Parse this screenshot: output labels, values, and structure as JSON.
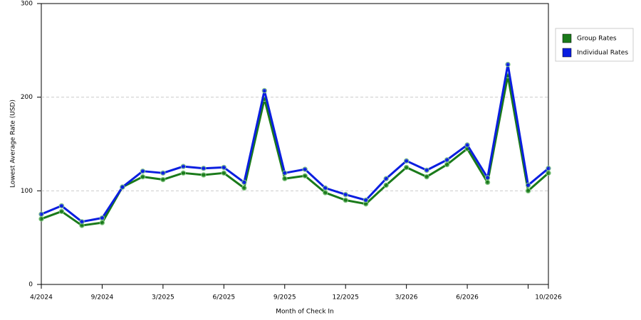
{
  "chart_data": {
    "type": "line",
    "x_label": "Month of Check In",
    "y_label": "Lowest Average Rate (USD)",
    "categories": [
      "4/2024",
      null,
      null,
      "9/2024",
      null,
      null,
      "3/2025",
      null,
      null,
      "6/2025",
      null,
      null,
      "9/2025",
      null,
      null,
      "12/2025",
      null,
      null,
      "3/2026",
      null,
      null,
      "6/2026",
      null,
      null,
      null,
      "10/2026"
    ],
    "series": [
      {
        "name": "Group Rates",
        "color": "#1a7a1a",
        "values": [
          70,
          78,
          63,
          66,
          104,
          115,
          112,
          119,
          117,
          119,
          103,
          198,
          113,
          116,
          98,
          90,
          86,
          106,
          125,
          115,
          128,
          145,
          109,
          223,
          100,
          119
        ]
      },
      {
        "name": "Individual Rates",
        "color": "#0a1ee0",
        "values": [
          75,
          84,
          67,
          71,
          104,
          121,
          119,
          126,
          124,
          125,
          109,
          207,
          119,
          123,
          103,
          96,
          90,
          113,
          132,
          122,
          133,
          149,
          114,
          235,
          106,
          124
        ]
      }
    ],
    "ylim": [
      0,
      300
    ],
    "yticks": [
      0,
      100,
      200,
      300
    ],
    "grid": true
  }
}
